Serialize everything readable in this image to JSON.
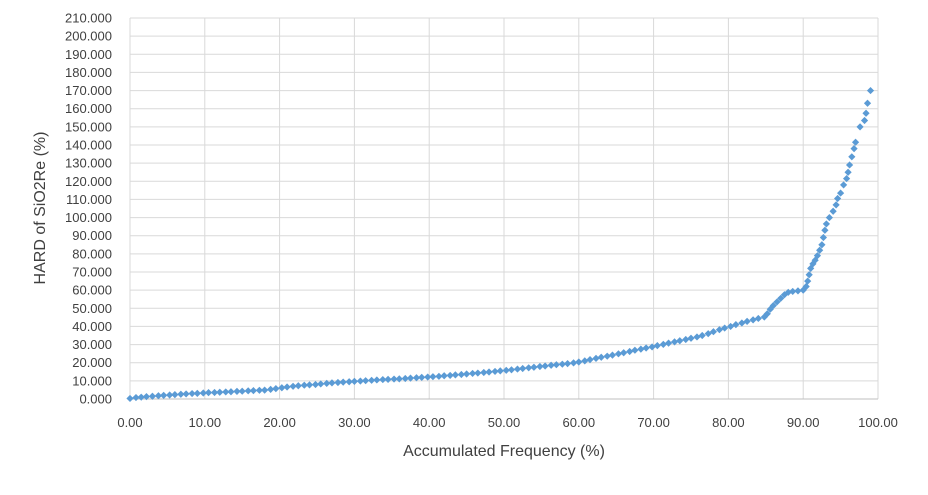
{
  "chart_data": {
    "type": "scatter",
    "title": "",
    "xlabel": "Accumulated Frequency (%)",
    "ylabel": "HARD of SiO2Re (%)",
    "xlim": [
      0,
      100
    ],
    "ylim": [
      0,
      210
    ],
    "x_ticks": [
      "0.00",
      "10.00",
      "20.00",
      "30.00",
      "40.00",
      "50.00",
      "60.00",
      "70.00",
      "80.00",
      "90.00",
      "100.00"
    ],
    "y_ticks": [
      "0.000",
      "10.000",
      "20.000",
      "30.000",
      "40.000",
      "50.000",
      "60.000",
      "70.000",
      "80.000",
      "90.000",
      "100.000",
      "110.000",
      "120.000",
      "130.000",
      "140.000",
      "150.000",
      "160.000",
      "170.000",
      "180.000",
      "190.000",
      "200.000",
      "210.000"
    ],
    "grid": true,
    "legend": "none",
    "marker": "diamond",
    "color": "#5b9bd5",
    "series": [
      {
        "x": [
          0.0,
          0.8,
          1.5,
          2.2,
          3.0,
          3.8,
          4.5,
          5.3,
          6.0,
          6.8,
          7.5,
          8.3,
          9.0,
          9.8,
          10.5,
          11.3,
          12.0,
          12.8,
          13.5,
          14.3,
          15.0,
          15.8,
          16.5,
          17.3,
          18.0,
          18.8,
          19.5,
          20.3,
          21.0,
          21.8,
          22.5,
          23.3,
          24.0,
          24.8,
          25.5,
          26.3,
          27.0,
          27.8,
          28.5,
          29.3,
          30.0,
          30.8,
          31.5,
          32.3,
          33.0,
          33.8,
          34.5,
          35.3,
          36.0,
          36.8,
          37.5,
          38.3,
          39.0,
          39.8,
          40.5,
          41.3,
          42.0,
          42.8,
          43.5,
          44.3,
          45.0,
          45.8,
          46.5,
          47.3,
          48.0,
          48.8,
          49.5,
          50.3,
          51.0,
          51.8,
          52.5,
          53.3,
          54.0,
          54.8,
          55.5,
          56.3,
          57.0,
          57.8,
          58.5,
          59.3,
          60.0,
          60.8,
          61.5,
          62.3,
          63.0,
          63.8,
          64.5,
          65.3,
          66.0,
          66.8,
          67.5,
          68.3,
          69.0,
          69.8,
          70.5,
          71.3,
          72.0,
          72.8,
          73.5,
          74.3,
          75.0,
          75.8,
          76.5,
          77.3,
          78.0,
          78.8,
          79.5,
          80.3,
          81.0,
          81.8,
          82.5,
          83.3,
          84.0,
          84.8,
          85.2,
          85.6,
          86.0,
          86.5,
          87.0,
          87.5,
          88.0,
          88.6,
          89.3,
          90.0,
          90.4,
          90.6,
          90.8,
          91.0,
          91.3,
          91.6,
          91.9,
          92.2,
          92.5,
          92.7,
          92.9,
          93.1,
          93.5,
          94.0,
          94.4,
          94.6,
          95.0,
          95.4,
          95.8,
          96.0,
          96.2,
          96.5,
          96.8,
          97.0,
          97.6,
          98.2,
          98.4,
          98.6,
          99.0
        ],
        "y": [
          0.3,
          0.8,
          1.0,
          1.3,
          1.5,
          1.8,
          2.0,
          2.2,
          2.4,
          2.6,
          2.8,
          3.0,
          3.1,
          3.3,
          3.5,
          3.6,
          3.7,
          3.9,
          4.0,
          4.2,
          4.3,
          4.5,
          4.6,
          4.8,
          4.9,
          5.3,
          5.7,
          6.2,
          6.6,
          7.0,
          7.3,
          7.6,
          7.8,
          8.0,
          8.3,
          8.6,
          8.9,
          9.1,
          9.3,
          9.5,
          9.7,
          9.9,
          10.1,
          10.3,
          10.5,
          10.7,
          10.8,
          11.0,
          11.1,
          11.3,
          11.5,
          11.7,
          11.9,
          12.1,
          12.3,
          12.5,
          12.8,
          13.0,
          13.3,
          13.5,
          13.8,
          14.1,
          14.3,
          14.6,
          14.9,
          15.2,
          15.5,
          15.8,
          16.1,
          16.5,
          16.8,
          17.2,
          17.5,
          17.9,
          18.2,
          18.6,
          18.9,
          19.2,
          19.5,
          19.9,
          20.4,
          21.0,
          21.7,
          22.4,
          23.0,
          23.6,
          24.2,
          24.9,
          25.5,
          26.2,
          26.9,
          27.5,
          28.1,
          28.7,
          29.4,
          30.1,
          30.8,
          31.5,
          32.1,
          32.8,
          33.5,
          34.2,
          35.0,
          36.0,
          37.1,
          38.2,
          39.1,
          40.0,
          41.0,
          41.9,
          42.8,
          43.6,
          44.4,
          45.2,
          47.0,
          49.5,
          51.5,
          53.5,
          55.5,
          57.5,
          58.8,
          59.3,
          59.6,
          60.0,
          62.0,
          65.0,
          68.5,
          72.0,
          74.5,
          76.5,
          79.0,
          82.0,
          85.0,
          89.0,
          93.0,
          96.5,
          100.0,
          103.5,
          107.0,
          110.5,
          113.5,
          118.0,
          121.5,
          125.0,
          129.0,
          133.5,
          138.0,
          141.5,
          150.0,
          153.5,
          157.5,
          163.0,
          170.0
        ]
      }
    ]
  }
}
